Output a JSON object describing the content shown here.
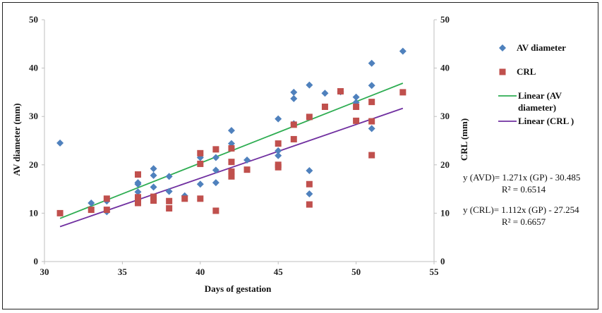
{
  "chart_data": {
    "type": "scatter",
    "xlabel": "Days of gestation",
    "ylabel": "AV diameter (mm)",
    "y2label": "CRL (mm)",
    "xlim": [
      30,
      55
    ],
    "ylim": [
      0,
      50
    ],
    "y2lim": [
      0,
      50
    ],
    "xticks": [
      30,
      35,
      40,
      45,
      50,
      55
    ],
    "yticks": [
      0,
      10,
      20,
      30,
      40,
      50
    ],
    "grid": false,
    "legend_position": "right",
    "series": [
      {
        "name": "AV diameter",
        "marker": "diamond",
        "color": "#4f81bd",
        "points": [
          [
            31,
            24.5
          ],
          [
            33,
            12.1
          ],
          [
            34,
            12.5
          ],
          [
            34,
            10.3
          ],
          [
            36,
            16.3
          ],
          [
            36,
            16
          ],
          [
            36,
            14.4
          ],
          [
            37,
            19.2
          ],
          [
            37,
            17.8
          ],
          [
            37,
            15.4
          ],
          [
            38,
            17.6
          ],
          [
            38,
            14.5
          ],
          [
            39,
            13.6
          ],
          [
            40,
            21.5
          ],
          [
            40,
            16
          ],
          [
            41,
            21.5
          ],
          [
            41,
            18.9
          ],
          [
            41,
            16.3
          ],
          [
            42,
            27.1
          ],
          [
            42,
            24.4
          ],
          [
            43,
            21
          ],
          [
            45,
            29.5
          ],
          [
            45,
            22.9
          ],
          [
            45,
            21.9
          ],
          [
            46,
            35
          ],
          [
            46,
            33.7
          ],
          [
            46,
            28.5
          ],
          [
            47,
            36.5
          ],
          [
            47,
            18.8
          ],
          [
            47,
            14
          ],
          [
            48,
            34.8
          ],
          [
            49,
            35.1
          ],
          [
            50,
            34
          ],
          [
            50,
            32.9
          ],
          [
            51,
            41
          ],
          [
            51,
            36.4
          ],
          [
            51,
            27.5
          ],
          [
            53,
            43.5
          ]
        ]
      },
      {
        "name": "CRL",
        "marker": "square",
        "color": "#c0504d",
        "points": [
          [
            31,
            10
          ],
          [
            33,
            10.7
          ],
          [
            34,
            13
          ],
          [
            34,
            10.7
          ],
          [
            36,
            18
          ],
          [
            36,
            13.3
          ],
          [
            36,
            12.1
          ],
          [
            37,
            13.4
          ],
          [
            37,
            12.6
          ],
          [
            38,
            12.5
          ],
          [
            38,
            11
          ],
          [
            39,
            13
          ],
          [
            40,
            22.4
          ],
          [
            40,
            20.2
          ],
          [
            40,
            13
          ],
          [
            41,
            23.2
          ],
          [
            41,
            10.5
          ],
          [
            42,
            23.4
          ],
          [
            42,
            20.6
          ],
          [
            42,
            18.6
          ],
          [
            42,
            17.6
          ],
          [
            43,
            19
          ],
          [
            45,
            24.4
          ],
          [
            45,
            20
          ],
          [
            45,
            19.5
          ],
          [
            46,
            28.3
          ],
          [
            46,
            25.3
          ],
          [
            47,
            29.9
          ],
          [
            47,
            16
          ],
          [
            47,
            11.8
          ],
          [
            48,
            32
          ],
          [
            49,
            35.2
          ],
          [
            50,
            32
          ],
          [
            50,
            29.1
          ],
          [
            51,
            33
          ],
          [
            51,
            29
          ],
          [
            51,
            22
          ],
          [
            53,
            35
          ]
        ]
      }
    ],
    "trendlines": [
      {
        "name": "Linear (AV diameter)",
        "color": "#2ead52",
        "slope": 1.271,
        "intercept": -30.485,
        "x_range": [
          31,
          53
        ]
      },
      {
        "name": "Linear (CRL )",
        "color": "#7030a0",
        "slope": 1.112,
        "intercept": -27.254,
        "x_range": [
          31,
          53
        ]
      }
    ],
    "legend": [
      {
        "label": "AV diameter",
        "kind": "diamond",
        "color": "#4f81bd"
      },
      {
        "label": "CRL",
        "kind": "square",
        "color": "#c0504d"
      },
      {
        "label_lines": [
          "Linear (AV",
          "diameter)"
        ],
        "kind": "line",
        "color": "#2ead52"
      },
      {
        "label_lines": [
          "Linear (CRL )"
        ],
        "kind": "line",
        "color": "#7030a0"
      }
    ],
    "annotations": [
      {
        "line1": "y  (AVD)= 1.271x (GP) - 30.485",
        "line2": "R² = 0.6514"
      },
      {
        "line1": "y  (CRL)= 1.112x (GP) - 27.254",
        "line2": "R² = 0.6657"
      }
    ]
  }
}
